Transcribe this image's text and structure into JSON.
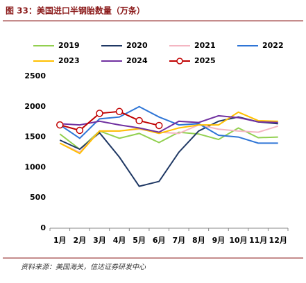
{
  "chart_data": {
    "type": "line",
    "title": "图 33：美国进口半钢胎数量（万条）",
    "source": "资料来源：美国海关，信达证券研发中心",
    "categories": [
      "1月",
      "2月",
      "3月",
      "4月",
      "5月",
      "6月",
      "7月",
      "8月",
      "9月",
      "10月",
      "11月",
      "12月"
    ],
    "series": [
      {
        "name": "2019",
        "color": "#92d050",
        "values": [
          1550,
          1300,
          1600,
          1480,
          1560,
          1410,
          1580,
          1550,
          1460,
          1650,
          1490,
          1500
        ]
      },
      {
        "name": "2020",
        "color": "#1f3864",
        "values": [
          1450,
          1300,
          1570,
          1170,
          690,
          770,
          1250,
          1600,
          1760,
          1830,
          1750,
          1720
        ]
      },
      {
        "name": "2021",
        "color": "#f4b6c2",
        "values": [
          1400,
          1250,
          1600,
          1600,
          1630,
          1580,
          1560,
          1700,
          1630,
          1600,
          1580,
          1680
        ]
      },
      {
        "name": "2022",
        "color": "#2e75d6",
        "values": [
          1700,
          1480,
          1800,
          1830,
          2000,
          1830,
          1700,
          1720,
          1530,
          1500,
          1400,
          1400
        ]
      },
      {
        "name": "2023",
        "color": "#ffc000",
        "values": [
          1400,
          1230,
          1600,
          1600,
          1640,
          1560,
          1650,
          1700,
          1700,
          1910,
          1770,
          1760
        ]
      },
      {
        "name": "2024",
        "color": "#7030a0",
        "values": [
          1720,
          1700,
          1760,
          1700,
          1650,
          1580,
          1760,
          1740,
          1850,
          1820,
          1750,
          1740
        ]
      },
      {
        "name": "2025",
        "color": "#c00000",
        "values": [
          1700,
          1610,
          1890,
          1920,
          1770,
          1690,
          null,
          null,
          null,
          null,
          null,
          null
        ]
      }
    ],
    "ylim": [
      0,
      2500
    ],
    "yticks": [
      0,
      500,
      1000,
      1500,
      2000,
      2500
    ],
    "grid": false
  }
}
